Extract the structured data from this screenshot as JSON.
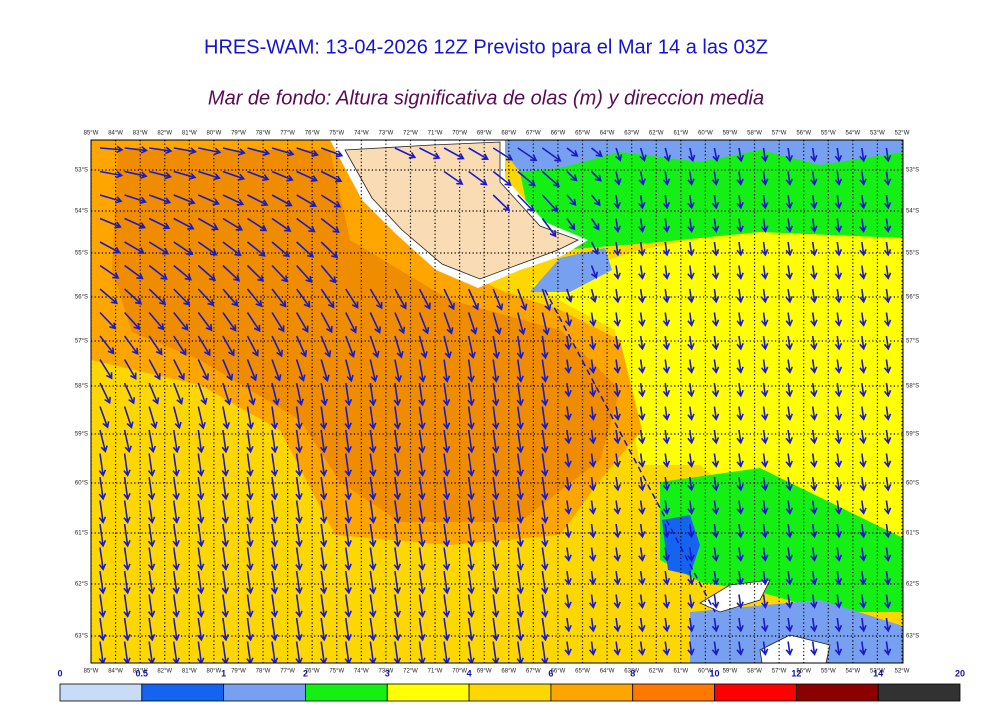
{
  "header": {
    "title": "HRES-WAM: 13-04-2026 12Z Previsto para el Mar 14 a las 03Z",
    "subtitle": "Mar de fondo: Altura significativa de olas (m) y direccion media"
  },
  "map": {
    "lon_labels": [
      "85°W",
      "84°W",
      "83°W",
      "82°W",
      "81°W",
      "80°W",
      "79°W",
      "78°W",
      "77°W",
      "76°W",
      "75°W",
      "74°W",
      "73°W",
      "72°W",
      "71°W",
      "70°W",
      "69°W",
      "68°W",
      "67°W",
      "66°W",
      "65°W",
      "64°W",
      "63°W",
      "62°W",
      "61°W",
      "60°W",
      "59°W",
      "58°W",
      "57°W",
      "56°W",
      "55°W",
      "54°W",
      "53°W",
      "52°W"
    ],
    "lat_labels": [
      "53°S",
      "54°S",
      "55°S",
      "56°S",
      "57°S",
      "58°S",
      "59°S",
      "60°S",
      "61°S",
      "62°S",
      "63°S"
    ]
  },
  "colorbar": {
    "ticks": [
      0,
      0.5,
      1,
      2,
      3,
      4,
      6,
      8,
      10,
      12,
      14,
      20
    ],
    "colors": [
      "#c8dcf5",
      "#1464f0",
      "#78a0f0",
      "#14f014",
      "#ffff00",
      "#ffd700",
      "#ffa500",
      "#ff7800",
      "#ff0000",
      "#8c0000",
      "#323232"
    ]
  }
}
